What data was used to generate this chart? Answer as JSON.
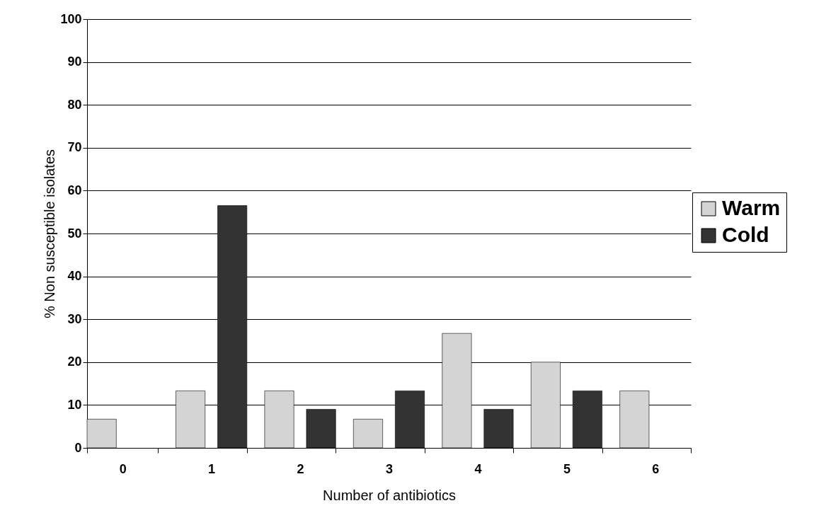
{
  "chart_data": {
    "type": "bar",
    "xlabel": "Number of antibiotics",
    "ylabel": "% Non susceptible isolates",
    "categories": [
      "0",
      "1",
      "2",
      "3",
      "4",
      "5",
      "6"
    ],
    "series": [
      {
        "name": "Warm",
        "color": "#d4d4d4",
        "values": [
          6.7,
          13.3,
          13.3,
          6.7,
          26.7,
          20,
          13.3
        ]
      },
      {
        "name": "Cold",
        "color": "#333333",
        "values": [
          0,
          56.5,
          9,
          13.3,
          9,
          13.3,
          0
        ]
      }
    ],
    "ylim": [
      0,
      100
    ],
    "yticks": [
      0,
      10,
      20,
      30,
      40,
      50,
      60,
      70,
      80,
      90,
      100
    ],
    "grid": "y",
    "legend": "right"
  }
}
